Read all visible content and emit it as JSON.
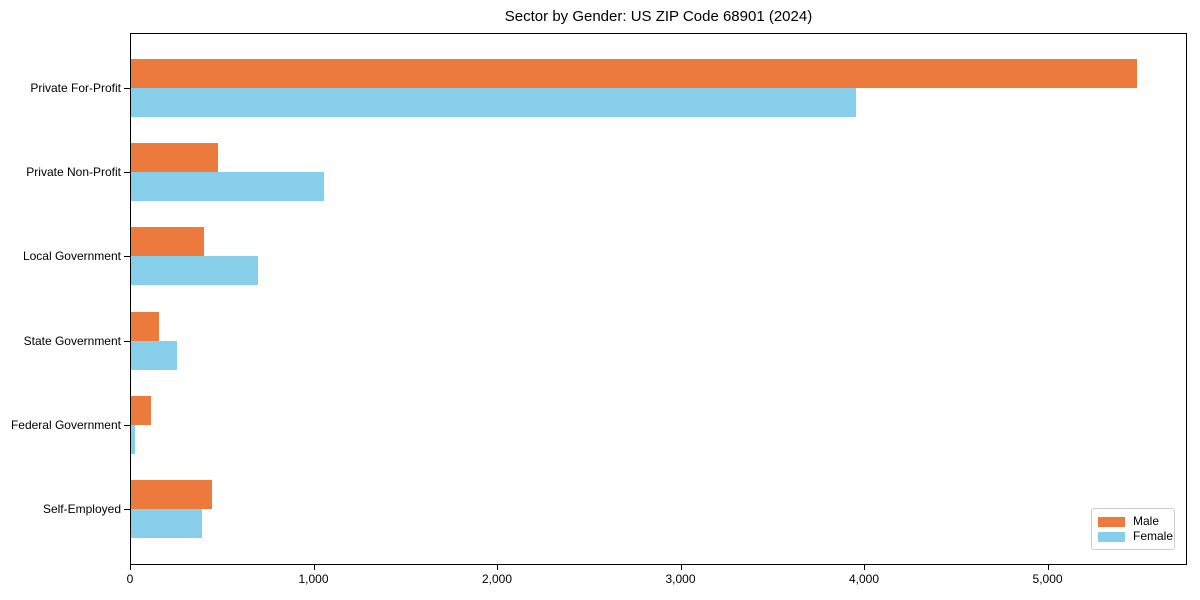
{
  "chart_data": {
    "type": "bar",
    "orientation": "horizontal",
    "title": "Sector by Gender: US ZIP Code 68901 (2024)",
    "categories": [
      "Private For-Profit",
      "Private Non-Profit",
      "Local Government",
      "State Government",
      "Federal Government",
      "Self-Employed"
    ],
    "series": [
      {
        "name": "Male",
        "color": "#eb7a3c",
        "values": [
          5480,
          475,
          400,
          150,
          110,
          440
        ]
      },
      {
        "name": "Female",
        "color": "#87ceeb",
        "values": [
          3950,
          1050,
          690,
          250,
          20,
          385
        ]
      }
    ],
    "xlabel": "",
    "ylabel": "",
    "xlim": [
      0,
      5760
    ],
    "xticks": {
      "values": [
        0,
        1000,
        2000,
        3000,
        4000,
        5000
      ],
      "labels": [
        "0",
        "1,000",
        "2,000",
        "3,000",
        "4,000",
        "5,000"
      ]
    },
    "grid": false,
    "legend": {
      "position": "lower right",
      "entries": [
        "Male",
        "Female"
      ]
    }
  },
  "colors": {
    "male": "#eb7a3c",
    "female": "#87ceeb",
    "axis": "#000000",
    "legend_border": "#cccccc",
    "background": "#ffffff"
  }
}
